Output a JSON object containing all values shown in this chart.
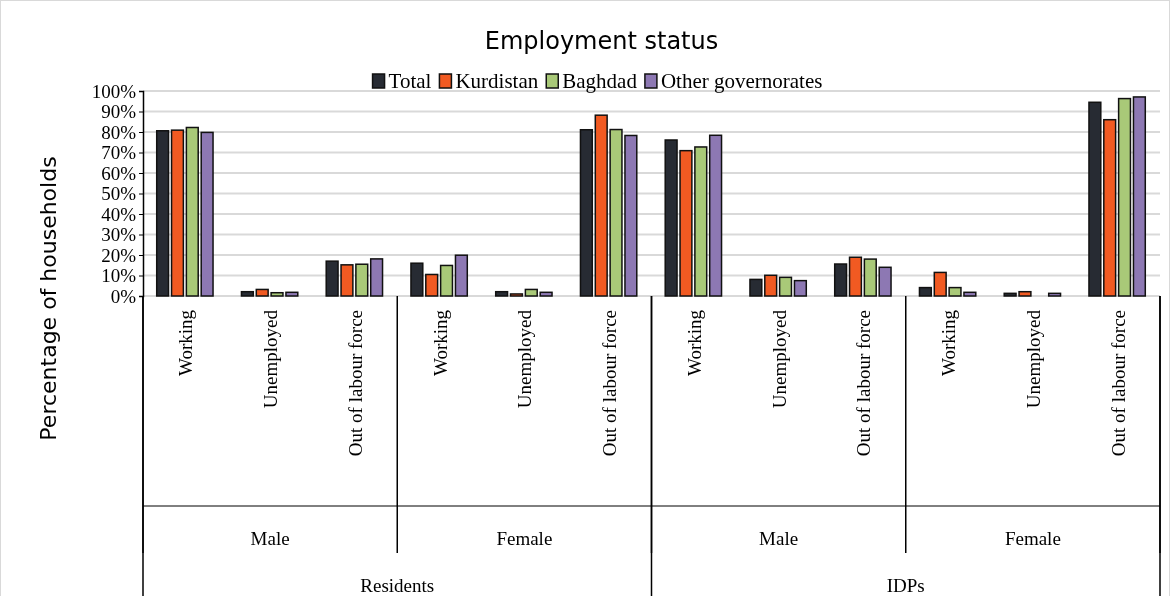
{
  "chart_data": {
    "type": "bar",
    "title": "Employment status",
    "ylabel": "Percentage of households",
    "categories": [
      "Working",
      "Unemployed",
      "Out of labour force",
      "Working",
      "Unemployed",
      "Out of labour force",
      "Working",
      "Unemployed",
      "Out of labour force",
      "Working",
      "Unemployed",
      "Out of labour force"
    ],
    "annotations": [
      "Male",
      "Female",
      "Male",
      "Female",
      "Residents",
      "IDPs"
    ],
    "ylim": [
      0,
      100
    ],
    "yticks": [
      {
        "value": 0,
        "label": "0%"
      },
      {
        "value": 10,
        "label": "10%"
      },
      {
        "value": 20,
        "label": "20%"
      },
      {
        "value": 30,
        "label": "30%"
      },
      {
        "value": 40,
        "label": "40%"
      },
      {
        "value": 50,
        "label": "50%"
      },
      {
        "value": 60,
        "label": "60%"
      },
      {
        "value": 70,
        "label": "70%"
      },
      {
        "value": 80,
        "label": "80%"
      },
      {
        "value": 90,
        "label": "90%"
      },
      {
        "value": 100,
        "label": "100%"
      }
    ],
    "grid": "y",
    "legend": "top",
    "series": [
      {
        "name": "Total",
        "color": "#272b33",
        "values": [
          80.6,
          2.1,
          17.0,
          16.0,
          2.1,
          81.1,
          76.1,
          8.1,
          15.6,
          4.1,
          1.3,
          94.5
        ]
      },
      {
        "name": "Kurdistan",
        "color": "#f15a22",
        "values": [
          80.9,
          3.2,
          15.2,
          10.5,
          1.0,
          88.2,
          70.9,
          10.1,
          18.9,
          11.5,
          2.1,
          86.0
        ]
      },
      {
        "name": "Baghdad",
        "color": "#a9c978",
        "values": [
          82.2,
          1.6,
          15.5,
          14.9,
          3.2,
          81.2,
          72.7,
          9.1,
          18.0,
          4.1,
          0,
          96.3
        ]
      },
      {
        "name": "Other governorates",
        "color": "#8d78b3",
        "values": [
          79.8,
          1.8,
          18.1,
          19.9,
          1.8,
          78.3,
          78.4,
          7.5,
          14.0,
          1.8,
          1.3,
          97.1
        ]
      }
    ]
  }
}
